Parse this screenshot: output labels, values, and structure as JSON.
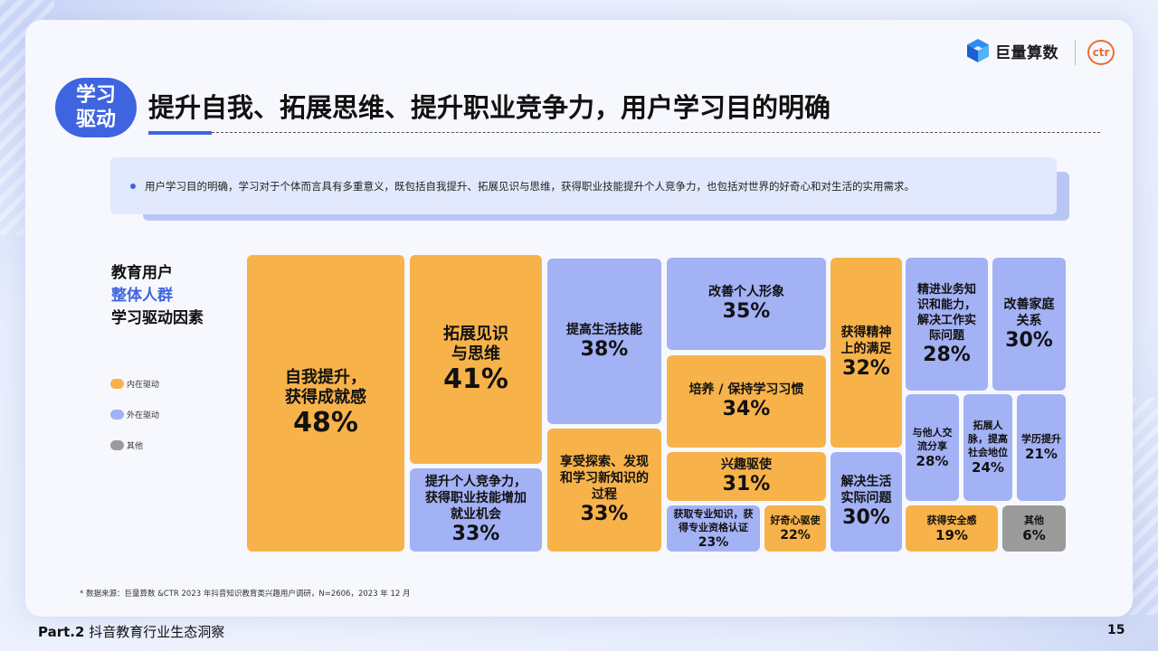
{
  "header": {
    "logo_text": "巨量算数",
    "logo2_text": "ctr",
    "badge_line1": "学习",
    "badge_line2": "驱动",
    "title": "提升自我、拓展思维、提升职业竞争力，用户学习目的明确"
  },
  "callout": {
    "text": "用户学习目的明确，学习对于个体而言具有多重意义，既包括自我提升、拓展见识与思维，获得职业技能提升个人竞争力，也包括对世界的好奇心和对生活的实用需求。"
  },
  "side": {
    "line1": "教育用户",
    "line2": "整体人群",
    "line3": "学习驱动因素"
  },
  "legend": [
    {
      "label": "内在驱动",
      "color": "#f7b24a"
    },
    {
      "label": "外在驱动",
      "color": "#a3b1f5"
    },
    {
      "label": "其他",
      "color": "#9b9b9b"
    }
  ],
  "colors": {
    "internal": "#f7b24a",
    "external": "#a3b1f5",
    "other": "#9b9b9b"
  },
  "chart_data": {
    "type": "treemap",
    "title": "",
    "series_names": [
      "内在驱动",
      "外在驱动",
      "其他"
    ],
    "items": [
      {
        "label": "自我提升，\n获得成就感",
        "value": 48,
        "display": "48%",
        "group": "internal"
      },
      {
        "label": "拓展见识\n与思维",
        "value": 41,
        "display": "41%",
        "group": "internal"
      },
      {
        "label": "提升个人竞争力，\n获得职业技能增加\n就业机会",
        "value": 33,
        "display": "33%",
        "group": "external"
      },
      {
        "label": "提高生活技能",
        "value": 38,
        "display": "38%",
        "group": "external"
      },
      {
        "label": "享受探索、发现\n和学习新知识的\n过程",
        "value": 33,
        "display": "33%",
        "group": "internal"
      },
      {
        "label": "改善个人形象",
        "value": 35,
        "display": "35%",
        "group": "external"
      },
      {
        "label": "培养 / 保持学习习惯",
        "value": 34,
        "display": "34%",
        "group": "internal"
      },
      {
        "label": "兴趣驱使",
        "value": 31,
        "display": "31%",
        "group": "internal"
      },
      {
        "label": "获取专业知识，获\n得专业资格认证",
        "value": 23,
        "display": "23%",
        "group": "external"
      },
      {
        "label": "好奇心驱使",
        "value": 22,
        "display": "22%",
        "group": "internal"
      },
      {
        "label": "获得精神\n上的满足",
        "value": 32,
        "display": "32%",
        "group": "internal"
      },
      {
        "label": "解决生活\n实际问题",
        "value": 30,
        "display": "30%",
        "group": "external"
      },
      {
        "label": "精进业务知\n识和能力，\n解决工作实\n际问题",
        "value": 28,
        "display": "28%",
        "group": "external"
      },
      {
        "label": "改善家庭\n关系",
        "value": 30,
        "display": "30%",
        "group": "external"
      },
      {
        "label": "与他人交\n流分享",
        "value": 28,
        "display": "28%",
        "group": "external"
      },
      {
        "label": "拓展人\n脉，提高\n社会地位",
        "value": 24,
        "display": "24%",
        "group": "external"
      },
      {
        "label": "学历提升",
        "value": 21,
        "display": "21%",
        "group": "external"
      },
      {
        "label": "获得安全感",
        "value": 19,
        "display": "19%",
        "group": "internal"
      },
      {
        "label": "其他",
        "value": 6,
        "display": "6%",
        "group": "other"
      }
    ]
  },
  "footnote": "* 数据来源：巨量算数 &CTR 2023 年抖音知识教育类兴趣用户调研，N=2606，2023 年 12 月",
  "footer": {
    "part": "Part.2",
    "section": "抖音教育行业生态洞察",
    "page": "15"
  }
}
